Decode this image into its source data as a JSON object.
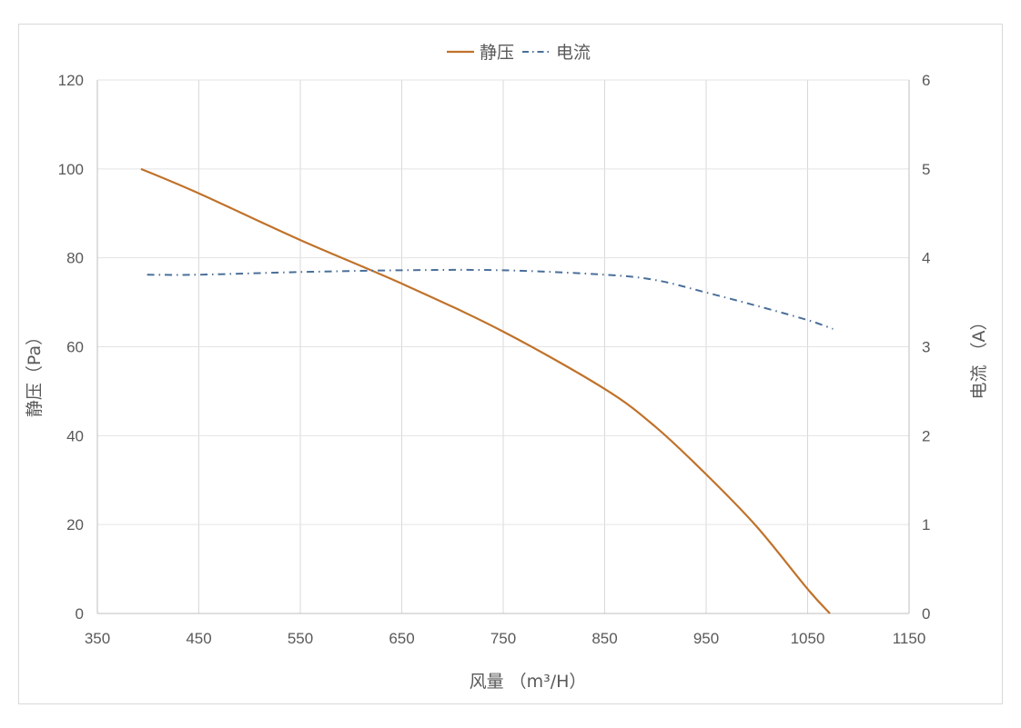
{
  "chart_data": {
    "type": "line",
    "title": "",
    "legend": {
      "position": "top",
      "entries": [
        {
          "name": "静压",
          "style": "solid",
          "color": "#c0722a"
        },
        {
          "name": "电流",
          "style": "dash-dot",
          "color": "#4a6f9a"
        }
      ]
    },
    "xlabel": "风量 （m³/H）",
    "ylabel": "静压（Pa）",
    "y2label": "电流 （A）",
    "xlim": [
      350,
      1150
    ],
    "ylim": [
      0,
      120
    ],
    "y2lim": [
      0,
      6
    ],
    "x_ticks": [
      "350",
      "450",
      "550",
      "650",
      "750",
      "850",
      "950",
      "1050",
      "1150"
    ],
    "y_ticks": [
      "0",
      "20",
      "40",
      "60",
      "80",
      "100",
      "120"
    ],
    "y2_ticks": [
      "0",
      "1",
      "2",
      "3",
      "4",
      "5",
      "6"
    ],
    "grid": true,
    "series": [
      {
        "name": "静压",
        "axis": "left",
        "color": "#c0722a",
        "x": [
          393,
          450,
          550,
          650,
          750,
          850,
          900,
          950,
          1000,
          1050,
          1072
        ],
        "values": [
          100,
          94.5,
          84,
          74.2,
          63.4,
          50.5,
          42,
          31.3,
          19.5,
          5.5,
          0
        ]
      },
      {
        "name": "电流",
        "axis": "right",
        "color": "#4a6f9a",
        "x": [
          399,
          450,
          550,
          650,
          750,
          850,
          900,
          950,
          1000,
          1050,
          1075
        ],
        "values": [
          3.81,
          3.81,
          3.84,
          3.86,
          3.86,
          3.81,
          3.75,
          3.61,
          3.46,
          3.3,
          3.2
        ]
      }
    ]
  }
}
